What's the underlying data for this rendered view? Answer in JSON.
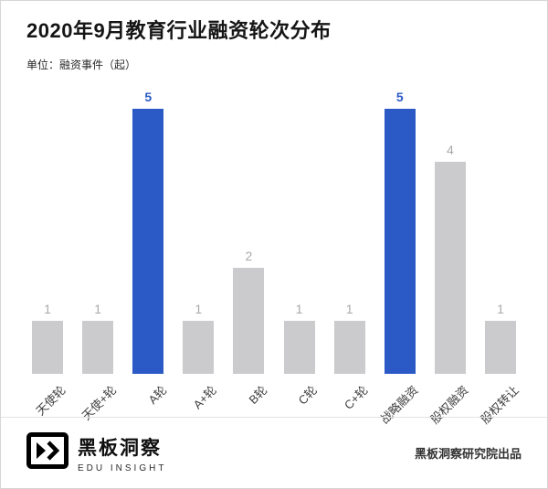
{
  "header": {
    "title": "2020年9月教育行业融资轮次分布",
    "unit": "单位：融资事件（起）"
  },
  "chart_data": {
    "type": "bar",
    "title": "2020年9月教育行业融资轮次分布",
    "ylabel": "融资事件（起）",
    "xlabel": "",
    "categories": [
      "天使轮",
      "天使+轮",
      "A轮",
      "A+轮",
      "B轮",
      "C轮",
      "C+轮",
      "战略融资",
      "股权融资",
      "股权转让"
    ],
    "values": [
      1,
      1,
      5,
      1,
      2,
      1,
      1,
      5,
      4,
      1
    ],
    "highlight_indices": [
      2,
      7
    ],
    "ylim": [
      0,
      5
    ],
    "grid": false,
    "legend": "none",
    "colors": {
      "bar_normal": "#cbcbce",
      "bar_highlight": "#2b5ac6",
      "value_label_normal": "#a9a9ac",
      "value_label_highlight": "#2b5ac6"
    }
  },
  "footer": {
    "brand": "黑板洞察",
    "brand_sub": "EDU INSIGHT",
    "credit": "黑板洞察研究院出品",
    "logo_icon": "blackboard-chevrons-icon"
  }
}
